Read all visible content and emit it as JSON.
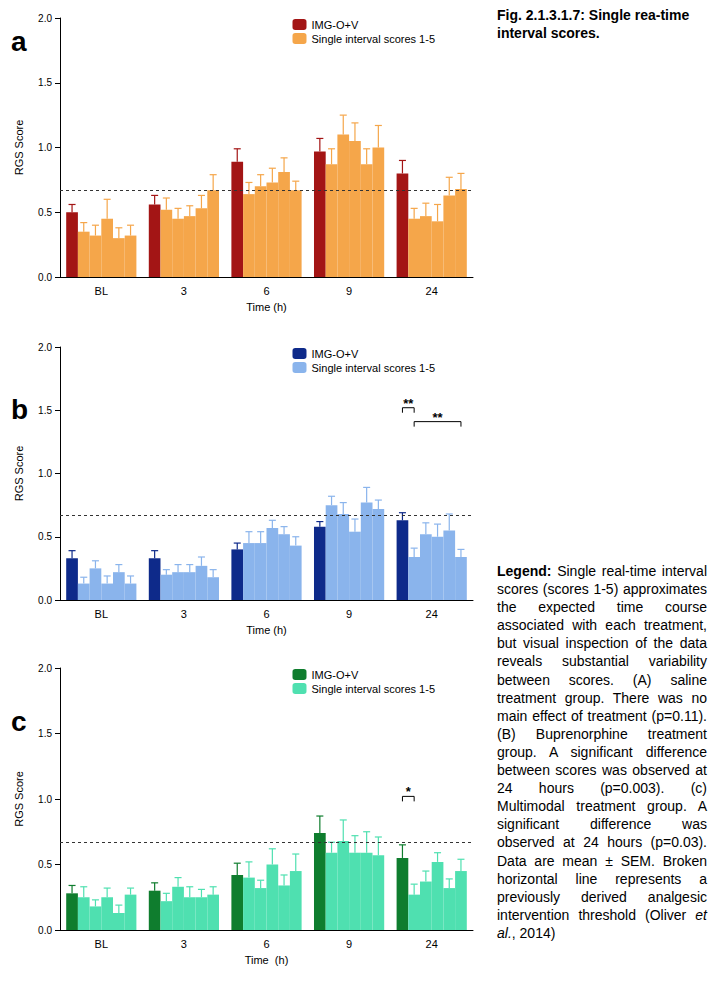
{
  "figure": {
    "title": "Fig. 2.1.3.1.7: Single rea-time interval scores.",
    "caption_label": "Legend:",
    "caption_text": "Single real-time interval scores (scores 1-5) approximates the expected time course associated with each treatment, but visual inspection of the data reveals substantial variability between scores. (A) saline treatment group. There was no main effect of treatment (p=0.11). (B) Buprenorphine treatment group. A significant difference between scores was observed at 24 hours (p=0.003). (c) Multimodal treatment group. A significant difference was observed at 24 hours (p=0.03). Data are mean ± SEM. Broken horizontal line represents a previously derived analgesic intervention threshold (Oliver ",
    "caption_italic": "et al.",
    "caption_end": ", 2014)"
  },
  "chart_data": [
    {
      "type": "bar",
      "panel": "a",
      "x_label": "Time (h)",
      "y_label": "RGS Score",
      "categories": [
        "BL",
        "3",
        "6",
        "9",
        "24"
      ],
      "ylim": [
        0,
        2
      ],
      "yticks": [
        {
          "value": 0,
          "label": "0.0"
        },
        0.5,
        {
          "value": 1,
          "label": "1.0"
        },
        1.5,
        {
          "value": 2,
          "label": "2.0"
        }
      ],
      "grid": false,
      "legend": "top-right",
      "threshold": 0.67,
      "series": [
        {
          "name": "IMG-O+V",
          "color": "#a31515",
          "values": [
            0.5,
            0.56,
            0.89,
            0.97,
            0.8
          ],
          "errors": [
            0.06,
            0.07,
            0.1,
            0.1,
            0.1
          ]
        },
        {
          "name": "Single interval scores 1-5",
          "color": "#f5a64a",
          "values": [
            [
              0.35,
              0.32,
              0.45,
              0.3,
              0.32
            ],
            [
              0.52,
              0.45,
              0.47,
              0.53,
              0.67
            ],
            [
              0.64,
              0.7,
              0.73,
              0.81,
              0.67
            ],
            [
              0.87,
              1.1,
              1.05,
              0.87,
              1.0
            ],
            [
              0.45,
              0.47,
              0.43,
              0.63,
              0.68
            ]
          ],
          "errors": [
            [
              0.07,
              0.08,
              0.15,
              0.08,
              0.08
            ],
            [
              0.09,
              0.08,
              0.08,
              0.1,
              0.12
            ],
            [
              0.09,
              0.09,
              0.11,
              0.11,
              0.07
            ],
            [
              0.12,
              0.15,
              0.14,
              0.12,
              0.17
            ],
            [
              0.08,
              0.1,
              0.13,
              0.14,
              0.12
            ]
          ]
        }
      ]
    },
    {
      "type": "bar",
      "panel": "b",
      "x_label": "Time (h)",
      "y_label": "RGS Score",
      "categories": [
        "BL",
        "3",
        "6",
        "9",
        "24"
      ],
      "ylim": [
        0,
        2
      ],
      "yticks": [
        {
          "value": 0,
          "label": "0.0"
        },
        0.5,
        {
          "value": 1,
          "label": "1.0"
        },
        1.5,
        {
          "value": 2,
          "label": "2.0"
        }
      ],
      "grid": false,
      "legend": "top-right",
      "threshold": 0.67,
      "series": [
        {
          "name": "IMG-O+V",
          "color": "#0e2a8a",
          "values": [
            0.33,
            0.33,
            0.4,
            0.58,
            0.63
          ],
          "errors": [
            0.06,
            0.06,
            0.05,
            0.04,
            0.06
          ]
        },
        {
          "name": "Single interval scores 1-5",
          "color": "#8ab4ec",
          "values": [
            [
              0.13,
              0.25,
              0.13,
              0.22,
              0.13
            ],
            [
              0.2,
              0.22,
              0.22,
              0.27,
              0.18
            ],
            [
              0.45,
              0.45,
              0.57,
              0.52,
              0.43
            ],
            [
              0.75,
              0.68,
              0.54,
              0.77,
              0.72
            ],
            [
              0.34,
              0.52,
              0.5,
              0.55,
              0.34
            ]
          ],
          "errors": [
            [
              0.05,
              0.06,
              0.06,
              0.06,
              0.06
            ],
            [
              0.04,
              0.06,
              0.06,
              0.07,
              0.06
            ],
            [
              0.09,
              0.09,
              0.06,
              0.06,
              0.07
            ],
            [
              0.07,
              0.09,
              0.1,
              0.12,
              0.07
            ],
            [
              0.07,
              0.09,
              0.1,
              0.13,
              0.06
            ]
          ]
        }
      ],
      "annotations": [
        {
          "text": "**",
          "category": "24",
          "bars": [
            0,
            1
          ],
          "y": 1.52
        },
        {
          "text": "**",
          "category": "24",
          "bars": [
            1,
            5
          ],
          "y": 1.41
        }
      ]
    },
    {
      "type": "bar",
      "panel": "c",
      "x_label": "Time  (h)",
      "y_label": "RGS Score",
      "categories": [
        "BL",
        "3",
        "6",
        "9",
        "24"
      ],
      "ylim": [
        0,
        2
      ],
      "yticks": [
        {
          "value": 0,
          "label": "0.0"
        },
        0.5,
        {
          "value": 1,
          "label": "1.0"
        },
        1.5,
        {
          "value": 2,
          "label": "2.0"
        }
      ],
      "grid": false,
      "legend": "top-right",
      "threshold": 0.67,
      "series": [
        {
          "name": "IMG-O+V",
          "color": "#0f7d2e",
          "values": [
            0.28,
            0.3,
            0.42,
            0.74,
            0.55
          ],
          "errors": [
            0.06,
            0.06,
            0.09,
            0.13,
            0.1
          ]
        },
        {
          "name": "Single interval scores 1-5",
          "color": "#4fe0b0",
          "values": [
            [
              0.25,
              0.18,
              0.25,
              0.13,
              0.27
            ],
            [
              0.22,
              0.33,
              0.25,
              0.25,
              0.27
            ],
            [
              0.4,
              0.32,
              0.5,
              0.34,
              0.45
            ],
            [
              0.59,
              0.68,
              0.59,
              0.59,
              0.57
            ],
            [
              0.27,
              0.37,
              0.52,
              0.32,
              0.45
            ]
          ],
          "errors": [
            [
              0.08,
              0.05,
              0.07,
              0.06,
              0.05
            ],
            [
              0.06,
              0.07,
              0.08,
              0.06,
              0.06
            ],
            [
              0.12,
              0.06,
              0.12,
              0.08,
              0.13
            ],
            [
              0.08,
              0.16,
              0.13,
              0.16,
              0.14
            ],
            [
              0.08,
              0.08,
              0.07,
              0.07,
              0.09
            ]
          ]
        }
      ],
      "annotations": [
        {
          "text": "*",
          "category": "24",
          "bars": [
            0,
            1
          ],
          "y": 1.02
        }
      ]
    }
  ]
}
